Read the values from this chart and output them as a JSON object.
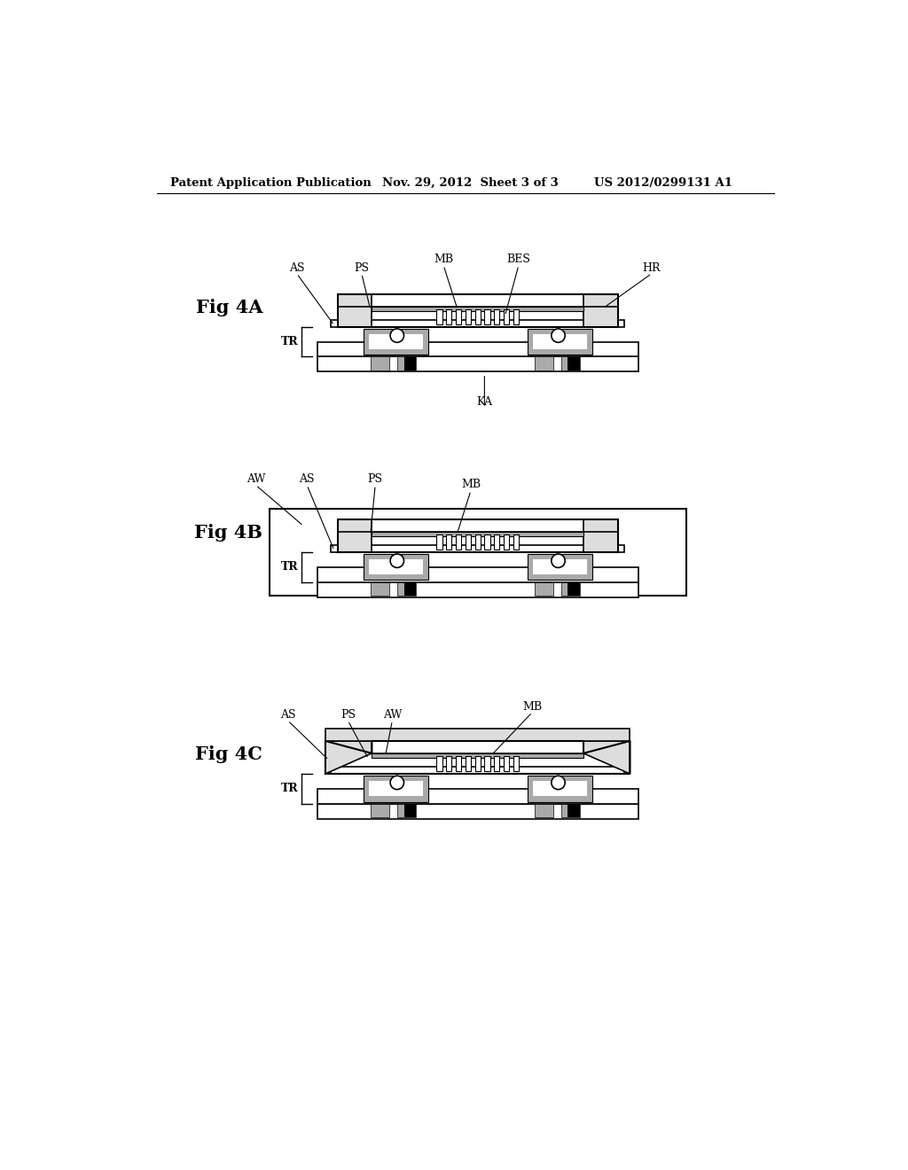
{
  "header_left": "Patent Application Publication",
  "header_mid": "Nov. 29, 2012  Sheet 3 of 3",
  "header_right": "US 2012/0299131 A1",
  "bg_color": "#ffffff",
  "lc": "#000000",
  "gc": "#aaaaaa",
  "lgc": "#dddddd"
}
